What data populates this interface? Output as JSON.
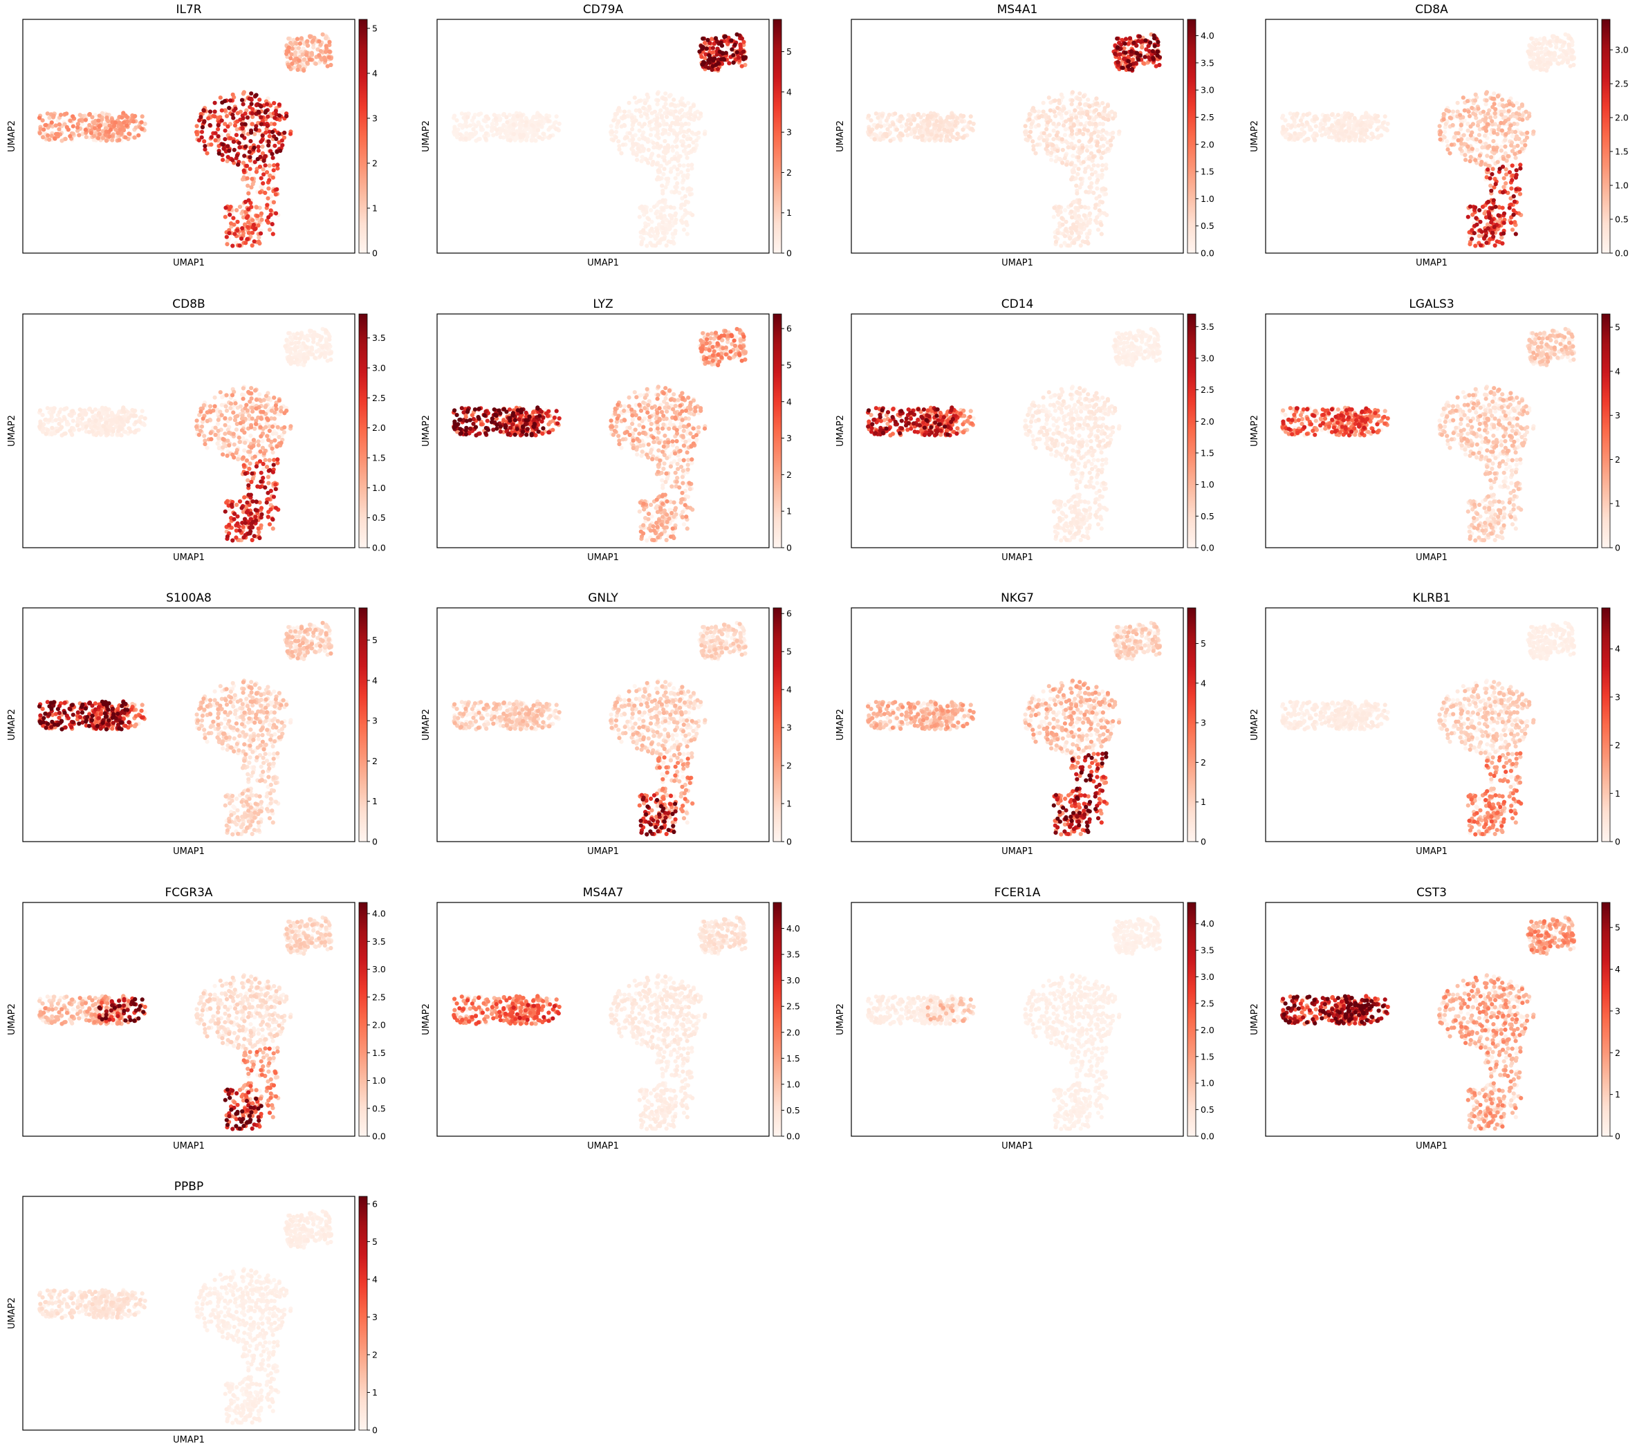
{
  "figure": {
    "background": "#ffffff",
    "colormap": "Reds",
    "colormap_stops": [
      "#fff5f0",
      "#fee0d2",
      "#fcbba1",
      "#fc9272",
      "#fb6a4a",
      "#ef3b2c",
      "#cb181d",
      "#a50f15",
      "#67000d"
    ]
  },
  "chart_data": [
    {
      "type": "scatter",
      "title": "IL7R",
      "xlabel": "UMAP1",
      "ylabel": "UMAP2",
      "grid": false,
      "colorbar_ticks": [
        "0",
        "1",
        "2",
        "3",
        "4",
        "5"
      ],
      "colorbar_range": [
        0,
        5.2
      ],
      "expression": {
        "c1": 0.35,
        "c1_tail": 0.35,
        "c2": 0.8,
        "c2_lower": 0.6,
        "c2_lower_left": 0.6,
        "c3": 0.3,
        "c3_tip": 0.3
      }
    },
    {
      "type": "scatter",
      "title": "CD79A",
      "xlabel": "UMAP1",
      "ylabel": "UMAP2",
      "grid": false,
      "colorbar_ticks": [
        "0",
        "1",
        "2",
        "3",
        "4",
        "5"
      ],
      "colorbar_range": [
        0,
        5.8
      ],
      "expression": {
        "c1": 0.02,
        "c1_tail": 0.02,
        "c2": 0.04,
        "c2_lower": 0.03,
        "c2_lower_left": 0.03,
        "c3": 0.88,
        "c3_tip": 0.88
      }
    },
    {
      "type": "scatter",
      "title": "MS4A1",
      "xlabel": "UMAP1",
      "ylabel": "UMAP2",
      "grid": false,
      "colorbar_ticks": [
        "0.0",
        "0.5",
        "1.0",
        "1.5",
        "2.0",
        "2.5",
        "3.0",
        "3.5",
        "4.0"
      ],
      "colorbar_range": [
        0,
        4.3
      ],
      "expression": {
        "c1": 0.1,
        "c1_tail": 0.1,
        "c2": 0.12,
        "c2_lower": 0.08,
        "c2_lower_left": 0.08,
        "c3": 0.85,
        "c3_tip": 0.85
      }
    },
    {
      "type": "scatter",
      "title": "CD8A",
      "xlabel": "UMAP1",
      "ylabel": "UMAP2",
      "grid": false,
      "colorbar_ticks": [
        "0.0",
        "0.5",
        "1.0",
        "1.5",
        "2.0",
        "2.5",
        "3.0"
      ],
      "colorbar_range": [
        0,
        3.45
      ],
      "expression": {
        "c1": 0.06,
        "c1_tail": 0.06,
        "c2": 0.25,
        "c2_lower": 0.75,
        "c2_lower_left": 0.75,
        "c3": 0.05,
        "c3_tip": 0.05
      }
    },
    {
      "type": "scatter",
      "title": "CD8B",
      "xlabel": "UMAP1",
      "ylabel": "UMAP2",
      "grid": false,
      "colorbar_ticks": [
        "0.0",
        "0.5",
        "1.0",
        "1.5",
        "2.0",
        "2.5",
        "3.0",
        "3.5"
      ],
      "colorbar_range": [
        0,
        3.9
      ],
      "expression": {
        "c1": 0.06,
        "c1_tail": 0.06,
        "c2": 0.3,
        "c2_lower": 0.72,
        "c2_lower_left": 0.72,
        "c3": 0.04,
        "c3_tip": 0.04
      }
    },
    {
      "type": "scatter",
      "title": "LYZ",
      "xlabel": "UMAP1",
      "ylabel": "UMAP2",
      "grid": false,
      "colorbar_ticks": [
        "0",
        "1",
        "2",
        "3",
        "4",
        "5",
        "6"
      ],
      "colorbar_range": [
        0,
        6.4
      ],
      "expression": {
        "c1": 0.95,
        "c1_tail": 0.65,
        "c2": 0.3,
        "c2_lower": 0.3,
        "c2_lower_left": 0.3,
        "c3": 0.4,
        "c3_tip": 0.4
      }
    },
    {
      "type": "scatter",
      "title": "CD14",
      "xlabel": "UMAP1",
      "ylabel": "UMAP2",
      "grid": false,
      "colorbar_ticks": [
        "0.0",
        "0.5",
        "1.0",
        "1.5",
        "2.0",
        "2.5",
        "3.0",
        "3.5"
      ],
      "colorbar_range": [
        0,
        3.7
      ],
      "expression": {
        "c1": 0.8,
        "c1_tail": 0.45,
        "c2": 0.08,
        "c2_lower": 0.06,
        "c2_lower_left": 0.06,
        "c3": 0.03,
        "c3_tip": 0.03
      }
    },
    {
      "type": "scatter",
      "title": "LGALS3",
      "xlabel": "UMAP1",
      "ylabel": "UMAP2",
      "grid": false,
      "colorbar_ticks": [
        "0",
        "1",
        "2",
        "3",
        "4",
        "5"
      ],
      "colorbar_range": [
        0,
        5.3
      ],
      "expression": {
        "c1": 0.6,
        "c1_tail": 0.55,
        "c2": 0.22,
        "c2_lower": 0.2,
        "c2_lower_left": 0.2,
        "c3": 0.22,
        "c3_tip": 0.22
      }
    },
    {
      "type": "scatter",
      "title": "S100A8",
      "xlabel": "UMAP1",
      "ylabel": "UMAP2",
      "grid": false,
      "colorbar_ticks": [
        "0",
        "1",
        "2",
        "3",
        "4",
        "5"
      ],
      "colorbar_range": [
        0,
        5.8
      ],
      "expression": {
        "c1": 0.95,
        "c1_tail": 0.55,
        "c2": 0.22,
        "c2_lower": 0.18,
        "c2_lower_left": 0.18,
        "c3": 0.22,
        "c3_tip": 0.22
      }
    },
    {
      "type": "scatter",
      "title": "GNLY",
      "xlabel": "UMAP1",
      "ylabel": "UMAP2",
      "grid": false,
      "colorbar_ticks": [
        "0",
        "1",
        "2",
        "3",
        "4",
        "5",
        "6"
      ],
      "colorbar_range": [
        0,
        6.15
      ],
      "expression": {
        "c1": 0.22,
        "c1_tail": 0.22,
        "c2": 0.22,
        "c2_lower": 0.4,
        "c2_lower_left": 0.92,
        "c3": 0.18,
        "c3_tip": 0.18
      }
    },
    {
      "type": "scatter",
      "title": "NKG7",
      "xlabel": "UMAP1",
      "ylabel": "UMAP2",
      "grid": false,
      "colorbar_ticks": [
        "0",
        "1",
        "2",
        "3",
        "4",
        "5"
      ],
      "colorbar_range": [
        0,
        5.9
      ],
      "expression": {
        "c1": 0.3,
        "c1_tail": 0.3,
        "c2": 0.28,
        "c2_lower": 0.85,
        "c2_lower_left": 0.9,
        "c3": 0.2,
        "c3_tip": 0.2
      }
    },
    {
      "type": "scatter",
      "title": "KLRB1",
      "xlabel": "UMAP1",
      "ylabel": "UMAP2",
      "grid": false,
      "colorbar_ticks": [
        "0",
        "1",
        "2",
        "3",
        "4"
      ],
      "colorbar_range": [
        0,
        4.85
      ],
      "expression": {
        "c1": 0.06,
        "c1_tail": 0.06,
        "c2": 0.2,
        "c2_lower": 0.45,
        "c2_lower_left": 0.45,
        "c3": 0.04,
        "c3_tip": 0.04
      }
    },
    {
      "type": "scatter",
      "title": "FCGR3A",
      "xlabel": "UMAP1",
      "ylabel": "UMAP2",
      "grid": false,
      "colorbar_ticks": [
        "0.0",
        "0.5",
        "1.0",
        "1.5",
        "2.0",
        "2.5",
        "3.0",
        "3.5",
        "4.0"
      ],
      "colorbar_range": [
        0,
        4.2
      ],
      "expression": {
        "c1": 0.3,
        "c1_tail": 0.92,
        "c2": 0.15,
        "c2_lower": 0.45,
        "c2_lower_left": 0.88,
        "c3": 0.18,
        "c3_tip": 0.18
      }
    },
    {
      "type": "scatter",
      "title": "MS4A7",
      "xlabel": "UMAP1",
      "ylabel": "UMAP2",
      "grid": false,
      "colorbar_ticks": [
        "0.0",
        "0.5",
        "1.0",
        "1.5",
        "2.0",
        "2.5",
        "3.0",
        "3.5",
        "4.0"
      ],
      "colorbar_range": [
        0,
        4.5
      ],
      "expression": {
        "c1": 0.5,
        "c1_tail": 0.62,
        "c2": 0.08,
        "c2_lower": 0.06,
        "c2_lower_left": 0.06,
        "c3": 0.12,
        "c3_tip": 0.12
      }
    },
    {
      "type": "scatter",
      "title": "FCER1A",
      "xlabel": "UMAP1",
      "ylabel": "UMAP2",
      "grid": false,
      "colorbar_ticks": [
        "0.0",
        "0.5",
        "1.0",
        "1.5",
        "2.0",
        "2.5",
        "3.0",
        "3.5",
        "4.0"
      ],
      "colorbar_range": [
        0,
        4.4
      ],
      "expression": {
        "c1": 0.06,
        "c1_tail": 0.25,
        "c2": 0.04,
        "c2_lower": 0.03,
        "c2_lower_left": 0.03,
        "c3": 0.03,
        "c3_tip": 0.03
      }
    },
    {
      "type": "scatter",
      "title": "CST3",
      "xlabel": "UMAP1",
      "ylabel": "UMAP2",
      "grid": false,
      "colorbar_ticks": [
        "0",
        "1",
        "2",
        "3",
        "4",
        "5"
      ],
      "colorbar_range": [
        0,
        5.6
      ],
      "expression": {
        "c1": 0.95,
        "c1_tail": 0.85,
        "c2": 0.35,
        "c2_lower": 0.35,
        "c2_lower_left": 0.35,
        "c3": 0.4,
        "c3_tip": 0.4
      }
    },
    {
      "type": "scatter",
      "title": "PPBP",
      "xlabel": "UMAP1",
      "ylabel": "UMAP2",
      "grid": false,
      "colorbar_ticks": [
        "0",
        "1",
        "2",
        "3",
        "4",
        "5",
        "6"
      ],
      "colorbar_range": [
        0,
        6.2
      ],
      "expression": {
        "c1": 0.12,
        "c1_tail": 0.12,
        "c2": 0.04,
        "c2_lower": 0.04,
        "c2_lower_left": 0.04,
        "c3": 0.05,
        "c3_tip": 0.05
      }
    }
  ]
}
